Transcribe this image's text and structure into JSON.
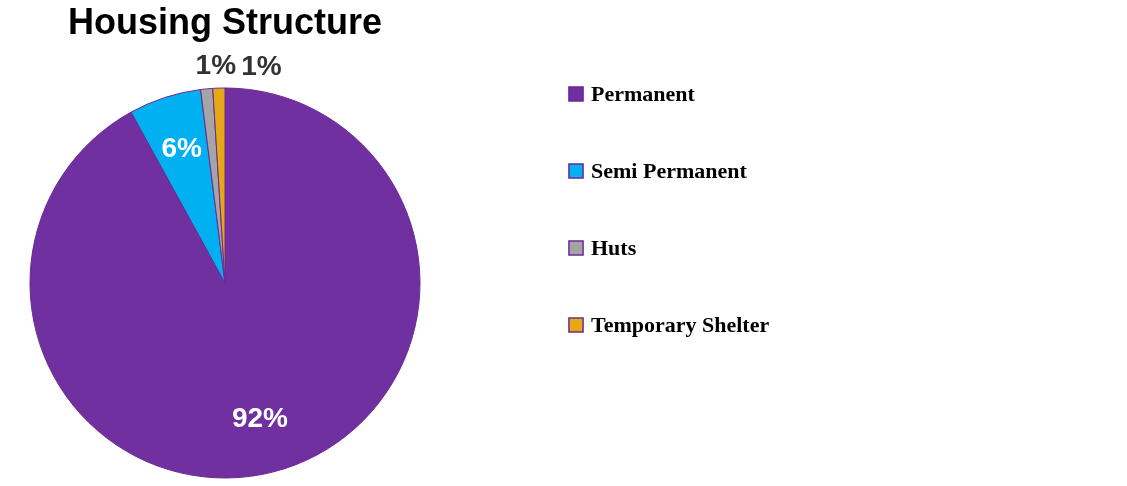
{
  "chart_data": {
    "type": "pie",
    "title": "Housing Structure",
    "categories": [
      "Permanent",
      "Semi Permanent",
      "Huts",
      "Temporary Shelter"
    ],
    "values": [
      92,
      6,
      1,
      1
    ],
    "colors": [
      "#7030a0",
      "#00b0f0",
      "#a5a5a5",
      "#e6a817"
    ],
    "value_labels": [
      "92%",
      "6%",
      "1%",
      "1%"
    ],
    "legend": "right"
  }
}
